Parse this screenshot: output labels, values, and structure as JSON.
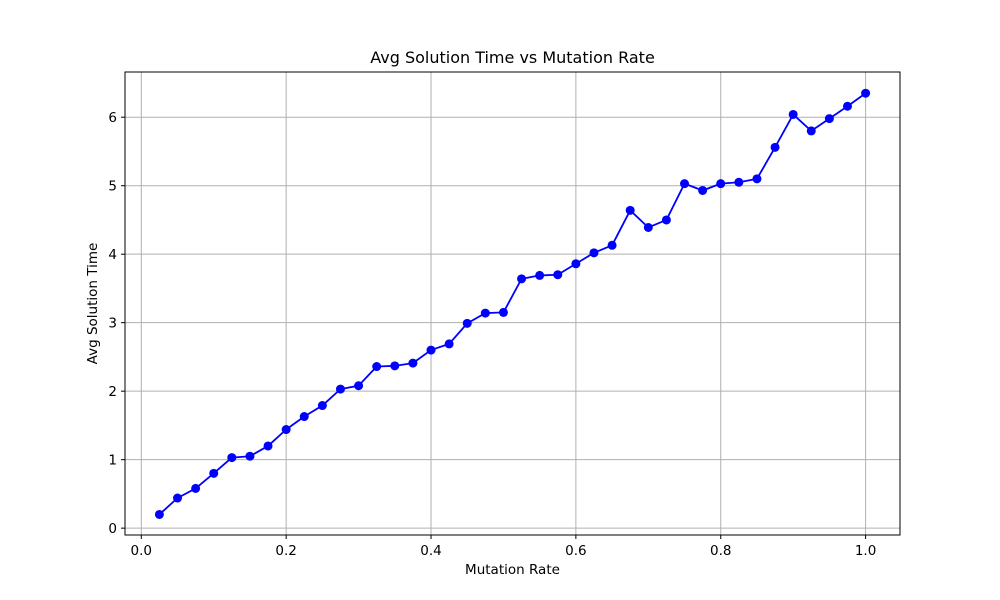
{
  "chart_data": {
    "type": "line",
    "title": "Avg Solution Time vs Mutation Rate",
    "xlabel": "Mutation Rate",
    "ylabel": "Avg Solution Time",
    "xlim": [
      -0.0225,
      1.0475
    ],
    "ylim": [
      -0.1,
      6.66
    ],
    "xticks": [
      0.0,
      0.2,
      0.4,
      0.6,
      0.8,
      1.0
    ],
    "xtick_labels": [
      "0.0",
      "0.2",
      "0.4",
      "0.6",
      "0.8",
      "1.0"
    ],
    "yticks": [
      0,
      1,
      2,
      3,
      4,
      5,
      6
    ],
    "ytick_labels": [
      "0",
      "1",
      "2",
      "3",
      "4",
      "5",
      "6"
    ],
    "grid": true,
    "series": [
      {
        "color": "#0000ff",
        "marker": "circle",
        "x": [
          0.025,
          0.05,
          0.075,
          0.1,
          0.125,
          0.15,
          0.175,
          0.2,
          0.225,
          0.25,
          0.275,
          0.3,
          0.325,
          0.35,
          0.375,
          0.4,
          0.425,
          0.45,
          0.475,
          0.5,
          0.525,
          0.55,
          0.575,
          0.6,
          0.625,
          0.65,
          0.675,
          0.7,
          0.725,
          0.75,
          0.775,
          0.8,
          0.825,
          0.85,
          0.875,
          0.9,
          0.925,
          0.95,
          0.975,
          1.0
        ],
        "y": [
          0.2,
          0.44,
          0.58,
          0.8,
          1.03,
          1.05,
          1.2,
          1.44,
          1.63,
          1.79,
          2.03,
          2.08,
          2.36,
          2.37,
          2.41,
          2.6,
          2.69,
          2.99,
          3.14,
          3.15,
          3.64,
          3.69,
          3.7,
          3.86,
          4.02,
          4.13,
          4.64,
          4.39,
          4.5,
          5.03,
          4.93,
          5.03,
          5.05,
          5.1,
          5.56,
          6.04,
          5.8,
          5.98,
          6.16,
          6.35
        ]
      }
    ]
  }
}
